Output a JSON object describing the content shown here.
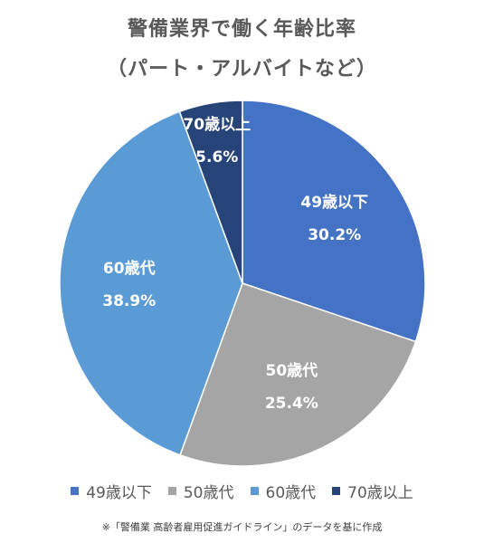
{
  "title_line1": "警備業界で働く年齢比率",
  "title_line2": "（パート・アルバイトなど）",
  "footnote": "※「警備業 高齢者雇用促進ガイドライン」のデータを基に作成",
  "chart_data": {
    "type": "pie",
    "title": "警備業界で働く年齢比率（パート・アルバイトなど）",
    "categories": [
      "49歳以下",
      "50歳代",
      "60歳代",
      "70歳以上"
    ],
    "values": [
      30.2,
      25.4,
      38.9,
      5.6
    ],
    "value_labels": [
      "30.2%",
      "25.4%",
      "38.9%",
      "5.6%"
    ],
    "colors": [
      "#4472C4",
      "#A5A5A5",
      "#5B9BD5",
      "#264478"
    ],
    "start_angle": "12 o'clock",
    "direction": "clockwise",
    "legend_position": "bottom"
  }
}
